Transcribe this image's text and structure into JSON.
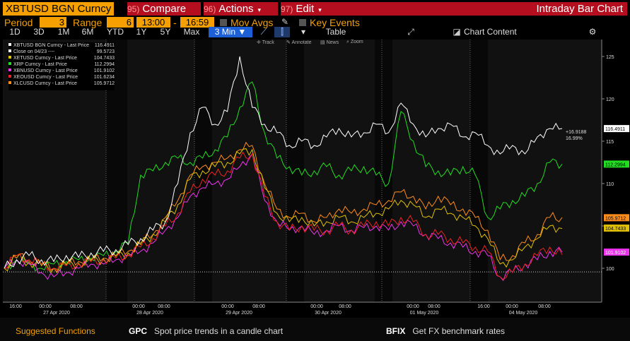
{
  "header": {
    "ticker": "XBTUSD BGN Curncy",
    "menu": [
      {
        "num": "95)",
        "label": "Compare",
        "caret": "▾"
      },
      {
        "num": "96)",
        "label": "Actions",
        "caret": "▾"
      },
      {
        "num": "97)",
        "label": "Edit",
        "caret": "▾"
      }
    ],
    "chart_title": "Intraday Bar Chart"
  },
  "settings": {
    "period_label": "Period",
    "period_value": "3",
    "range_label": "Range",
    "range_value": "6",
    "time_start": "13:00",
    "time_sep": "-",
    "time_end": "16:59",
    "mov_avgs": "Mov Avgs",
    "key_events": "Key Events"
  },
  "toolbar": {
    "ranges": [
      "1D",
      "3D",
      "1M",
      "6M",
      "YTD",
      "1Y",
      "5Y",
      "Max"
    ],
    "interval": "3 Min ▼",
    "table": "Table",
    "chart_content": "Chart Content",
    "tools": [
      "Track",
      "Annotate",
      "News",
      "Zoom"
    ]
  },
  "legend": [
    {
      "name": "XBTUSD BGN Curncy - Last Price",
      "value": "116.4911",
      "color": "#ffffff"
    },
    {
      "name": "Close on 04/23 ----",
      "value": "99.5723",
      "color": "#ffffff"
    },
    {
      "name": "XETUSD Curncy - Last Price",
      "value": "104.7433",
      "color": "#e0c000"
    },
    {
      "name": "XRP Curncy - Last Price",
      "value": "112.2994",
      "color": "#22dd22"
    },
    {
      "name": "XBNUSD Curncy - Last Price",
      "value": "101.9102",
      "color": "#ee33ee"
    },
    {
      "name": "XEOUSD Curncy - Last Price",
      "value": "101.6234",
      "color": "#ee2222"
    },
    {
      "name": "XLCUSD Curncy - Last Price",
      "value": "105.9712",
      "color": "#ff8c1a"
    }
  ],
  "annotation": {
    "change": "+16.9188",
    "pct": "16.99%"
  },
  "chart_data": {
    "type": "line",
    "ylim": [
      96,
      127
    ],
    "yticks": [
      100,
      105,
      110,
      115,
      120,
      125
    ],
    "reference_line": 99.5723,
    "x_labels": [
      {
        "t": "16:00",
        "d": ""
      },
      {
        "t": "00:00",
        "d": "27 Apr 2020"
      },
      {
        "t": "08:00",
        "d": ""
      },
      {
        "t": "00:00",
        "d": "28 Apr 2020"
      },
      {
        "t": "08:00",
        "d": ""
      },
      {
        "t": "00:00",
        "d": "29 Apr 2020"
      },
      {
        "t": "08:00",
        "d": ""
      },
      {
        "t": "00:00",
        "d": "30 Apr 2020"
      },
      {
        "t": "08:00",
        "d": ""
      },
      {
        "t": "00:00",
        "d": "01 May 2020"
      },
      {
        "t": "08:00",
        "d": ""
      },
      {
        "t": "16:00",
        "d": ""
      },
      {
        "t": "00:00",
        "d": "04 May 2020"
      },
      {
        "t": "08:00",
        "d": ""
      }
    ],
    "series": [
      {
        "name": "XBTUSD BGN Curncy - Last Price",
        "color": "#ffffff",
        "last": 116.4911,
        "values": [
          100,
          101,
          101.5,
          101,
          100.8,
          101.5,
          101.3,
          101.8,
          102,
          102.2,
          102.8,
          103.5,
          104.5,
          105.5,
          110,
          116,
          119,
          117,
          118.5,
          125,
          119,
          117,
          116,
          114.5,
          115,
          114.5,
          115.5,
          116.5,
          115.5,
          116,
          117,
          116,
          119.5,
          117,
          115.5,
          116.5,
          117,
          115.5,
          116,
          114.5,
          113.5,
          114.5,
          113.5,
          115.5,
          116.5,
          116.5
        ]
      },
      {
        "name": "XRP Curncy - Last Price",
        "color": "#22dd22",
        "last": 112.2994,
        "values": [
          100,
          101,
          100.5,
          100,
          100.5,
          100.8,
          101,
          101.2,
          101.5,
          102,
          103,
          111,
          111.5,
          112.5,
          113,
          112.5,
          113,
          114,
          115.5,
          119,
          122,
          116,
          113,
          112,
          111,
          111.5,
          112,
          111,
          111.5,
          112,
          111,
          110,
          118.5,
          115,
          112,
          111.5,
          111,
          112,
          111,
          106,
          107,
          108,
          108.5,
          110,
          112.5,
          112.3
        ]
      },
      {
        "name": "XLCUSD Curncy - Last Price",
        "color": "#ff8c1a",
        "last": 105.9712,
        "values": [
          100,
          101.5,
          101,
          100.5,
          100,
          100.5,
          100.8,
          101,
          101.2,
          101.5,
          102,
          103,
          104,
          106,
          108,
          111,
          112,
          112.5,
          113,
          114,
          114.5,
          110,
          107,
          106,
          106.5,
          105.5,
          106,
          107,
          106.5,
          107,
          107.5,
          108,
          109,
          108.5,
          107,
          108.5,
          107.5,
          107,
          106,
          104.5,
          101,
          101.5,
          103,
          104,
          106,
          106
        ]
      },
      {
        "name": "XETUSD Curncy - Last Price",
        "color": "#e0c000",
        "last": 104.7433,
        "values": [
          100,
          101.2,
          100.8,
          100.3,
          100,
          100.4,
          100.6,
          100.9,
          101.1,
          101.4,
          101.8,
          102.8,
          104,
          105.5,
          107.5,
          110.5,
          111.5,
          112,
          112.5,
          113.5,
          114,
          109.5,
          106.5,
          105.5,
          106,
          105,
          105.5,
          106,
          105.5,
          106,
          106.5,
          107,
          108,
          107.5,
          106,
          107,
          106.5,
          106,
          105,
          103.5,
          100.5,
          101,
          102.5,
          103.5,
          105,
          104.7
        ]
      },
      {
        "name": "XEOUSD Curncy - Last Price",
        "color": "#ee2222",
        "last": 101.6234,
        "values": [
          100,
          101.5,
          101,
          100.5,
          100,
          100.3,
          100.5,
          100.8,
          101,
          101.2,
          101.6,
          102.5,
          103.5,
          105,
          106.5,
          109,
          110.5,
          111,
          111.5,
          113,
          113.5,
          108.5,
          105.5,
          104.5,
          105,
          104.5,
          104.5,
          105,
          104.5,
          105,
          105.5,
          105,
          106,
          105.5,
          104,
          104,
          103.5,
          103,
          102.5,
          102,
          99,
          99.5,
          100.5,
          101.5,
          102.5,
          101.6
        ]
      },
      {
        "name": "XBNUSD Curncy - Last Price",
        "color": "#ee33ee",
        "last": 101.9102,
        "values": [
          100,
          101,
          100.5,
          99.5,
          99,
          99.5,
          100,
          100.5,
          100.5,
          101,
          101.5,
          102,
          103,
          104.5,
          106,
          108.5,
          109.5,
          110,
          110.5,
          112,
          113.5,
          108,
          105.5,
          104.5,
          105,
          104,
          104.5,
          105,
          104.5,
          104.8,
          105,
          104.5,
          105.5,
          105,
          104,
          103.5,
          103,
          102.5,
          102,
          101.5,
          99,
          99.5,
          100.5,
          101,
          102,
          101.9
        ]
      }
    ]
  }
}
